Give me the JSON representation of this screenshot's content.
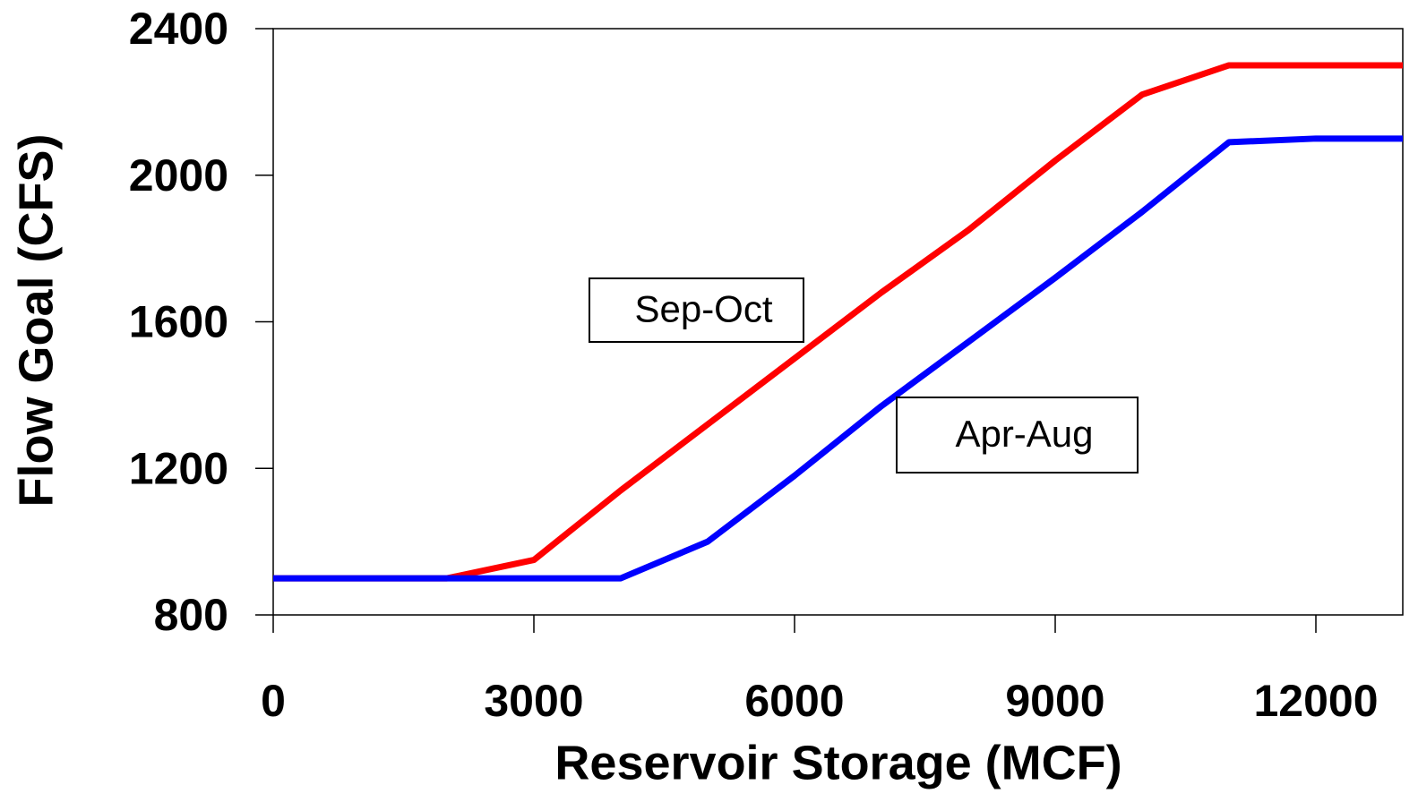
{
  "chart_data": {
    "type": "line",
    "x_label": "Reservoir Storage (MCF)",
    "y_label": "Flow Goal (CFS)",
    "x": [
      0,
      1000,
      2000,
      3000,
      4000,
      5000,
      6000,
      7000,
      8000,
      9000,
      10000,
      11000,
      12000,
      13000
    ],
    "series": [
      {
        "name": "Sep-Oct",
        "color": "#ff0000",
        "values": [
          900,
          900,
          900,
          950,
          1140,
          1320,
          1500,
          1680,
          1850,
          2040,
          2220,
          2300,
          2300,
          2300
        ]
      },
      {
        "name": "Apr-Aug",
        "color": "#0000ff",
        "values": [
          900,
          900,
          900,
          900,
          900,
          1000,
          1180,
          1370,
          1545,
          1720,
          1900,
          2090,
          2100,
          2100
        ]
      }
    ],
    "xlim": [
      0,
      13000
    ],
    "xticks": [
      0,
      3000,
      6000,
      9000,
      12000
    ],
    "ylim": [
      800,
      2400
    ],
    "yticks": [
      800,
      1200,
      1600,
      2000,
      2400
    ],
    "grid": false
  }
}
